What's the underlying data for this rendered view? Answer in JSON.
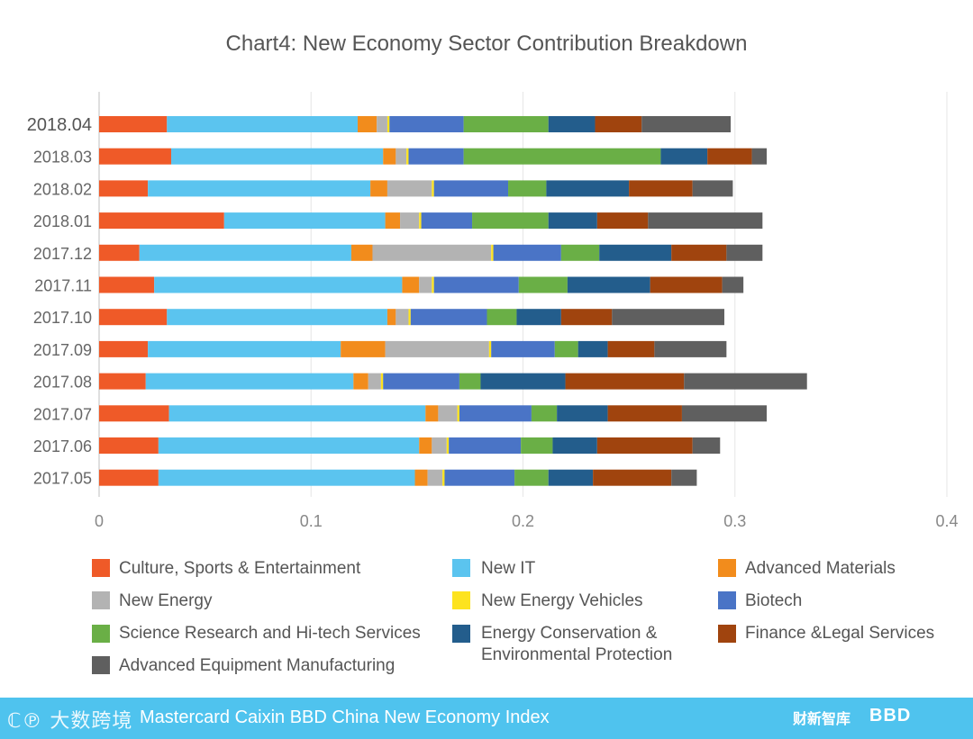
{
  "chart_data": {
    "type": "bar",
    "orientation": "horizontal",
    "stacked": true,
    "title": "Chart4: New Economy Sector Contribution Breakdown",
    "xlabel": "",
    "ylabel": "",
    "xlim": [
      0,
      0.4
    ],
    "x_ticks": [
      "0",
      "0.1",
      "0.2",
      "0.3",
      "0.4"
    ],
    "grid": true,
    "legend_position": "bottom",
    "categories": [
      "2018.04",
      "2018.03",
      "2018.02",
      "2018.01",
      "2017.12",
      "2017.11",
      "2017.10",
      "2017.09",
      "2017.08",
      "2017.07",
      "2017.06",
      "2017.05"
    ],
    "series": [
      {
        "name": "Culture, Sports & Entertainment",
        "color": "#ef5a28",
        "values": [
          0.032,
          0.034,
          0.023,
          0.059,
          0.019,
          0.026,
          0.032,
          0.023,
          0.022,
          0.033,
          0.028,
          0.028
        ]
      },
      {
        "name": "New IT",
        "color": "#5bc4ef",
        "values": [
          0.09,
          0.1,
          0.105,
          0.076,
          0.1,
          0.117,
          0.104,
          0.091,
          0.098,
          0.121,
          0.123,
          0.121
        ]
      },
      {
        "name": "Advanced Materials",
        "color": "#f28c1c",
        "values": [
          0.009,
          0.006,
          0.008,
          0.007,
          0.01,
          0.008,
          0.004,
          0.021,
          0.007,
          0.006,
          0.006,
          0.006
        ]
      },
      {
        "name": "New Energy",
        "color": "#b3b3b3",
        "values": [
          0.005,
          0.005,
          0.021,
          0.009,
          0.056,
          0.006,
          0.006,
          0.049,
          0.006,
          0.009,
          0.007,
          0.007
        ]
      },
      {
        "name": "New Energy Vehicles",
        "color": "#fde31e",
        "values": [
          0.001,
          0.001,
          0.001,
          0.001,
          0.001,
          0.001,
          0.001,
          0.001,
          0.001,
          0.001,
          0.001,
          0.001
        ]
      },
      {
        "name": "Biotech",
        "color": "#4a74c6",
        "values": [
          0.035,
          0.026,
          0.035,
          0.024,
          0.032,
          0.04,
          0.036,
          0.03,
          0.036,
          0.034,
          0.034,
          0.033
        ]
      },
      {
        "name": "Science Research and Hi-tech Services",
        "color": "#6aaf46",
        "values": [
          0.04,
          0.093,
          0.018,
          0.036,
          0.018,
          0.023,
          0.014,
          0.011,
          0.01,
          0.012,
          0.015,
          0.016
        ]
      },
      {
        "name": "Energy Conservation & Environmental Protection",
        "color": "#235d8c",
        "values": [
          0.022,
          0.022,
          0.039,
          0.023,
          0.034,
          0.039,
          0.021,
          0.014,
          0.04,
          0.024,
          0.021,
          0.021
        ]
      },
      {
        "name": "Finance &Legal Services",
        "color": "#a0440e",
        "values": [
          0.022,
          0.021,
          0.03,
          0.024,
          0.026,
          0.034,
          0.024,
          0.022,
          0.056,
          0.035,
          0.045,
          0.037
        ]
      },
      {
        "name": "Advanced Equipment Manufacturing",
        "color": "#5f5f5f",
        "values": [
          0.042,
          0.007,
          0.019,
          0.054,
          0.017,
          0.01,
          0.053,
          0.034,
          0.058,
          0.04,
          0.013,
          0.012
        ]
      }
    ]
  },
  "legend": {
    "culture": "Culture, Sports & Entertainment",
    "new_it": "New IT",
    "adv_materials": "Advanced Materials",
    "new_energy": "New Energy",
    "nev": "New Energy Vehicles",
    "biotech": "Biotech",
    "science": "Science Research and Hi-tech Services",
    "energy_line1": "Energy Conservation &",
    "energy_line2": "Environmental Protection",
    "finance": "Finance &Legal Services",
    "adv_equipment": "Advanced Equipment Manufacturing"
  },
  "footer": {
    "logo_left": "ℂ℗ 大数跨境",
    "title": "Mastercard Caixin BBD China New Economy Index",
    "logo_caixin": "财新智库",
    "logo_bbd": "BBD",
    "bg_color": "#4fc3ee"
  }
}
